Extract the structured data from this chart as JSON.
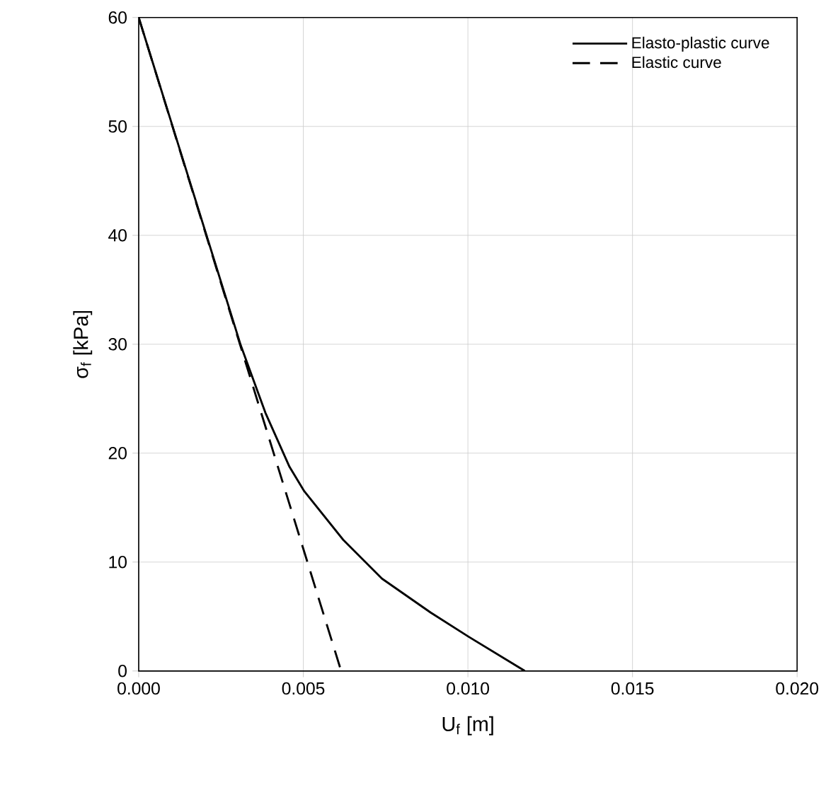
{
  "chart_data": {
    "type": "line",
    "xlabel": "U$_{f}$ [m]",
    "ylabel": "σ$_{f}$ [kPa]",
    "xlim": [
      0,
      0.02
    ],
    "ylim": [
      0,
      60
    ],
    "xticks": [
      {
        "value": 0,
        "label": "0.000"
      },
      {
        "value": 0.005,
        "label": "0.005"
      },
      {
        "value": 0.01,
        "label": "0.010"
      },
      {
        "value": 0.015,
        "label": "0.015"
      },
      {
        "value": 0.02,
        "label": "0.020"
      }
    ],
    "yticks": [
      0,
      10,
      20,
      30,
      40,
      50,
      60
    ],
    "grid": true,
    "legend": "top right",
    "series": [
      {
        "name": "Elasto-plastic curve",
        "color": "#000000",
        "line_style": "solid",
        "x": [
          0,
          0.0031,
          0.00385,
          0.00458,
          0.00503,
          0.00621,
          0.00739,
          0.00887,
          0.01003,
          0.01173
        ],
        "values": [
          60,
          29.9,
          23.7,
          18.75,
          16.5,
          12.05,
          8.48,
          5.36,
          3.13,
          0
        ]
      },
      {
        "name": "Elastic curve",
        "color": "#000000",
        "line_style": "dashed",
        "x": [
          0,
          0.00615
        ],
        "values": [
          60,
          0
        ]
      }
    ]
  }
}
